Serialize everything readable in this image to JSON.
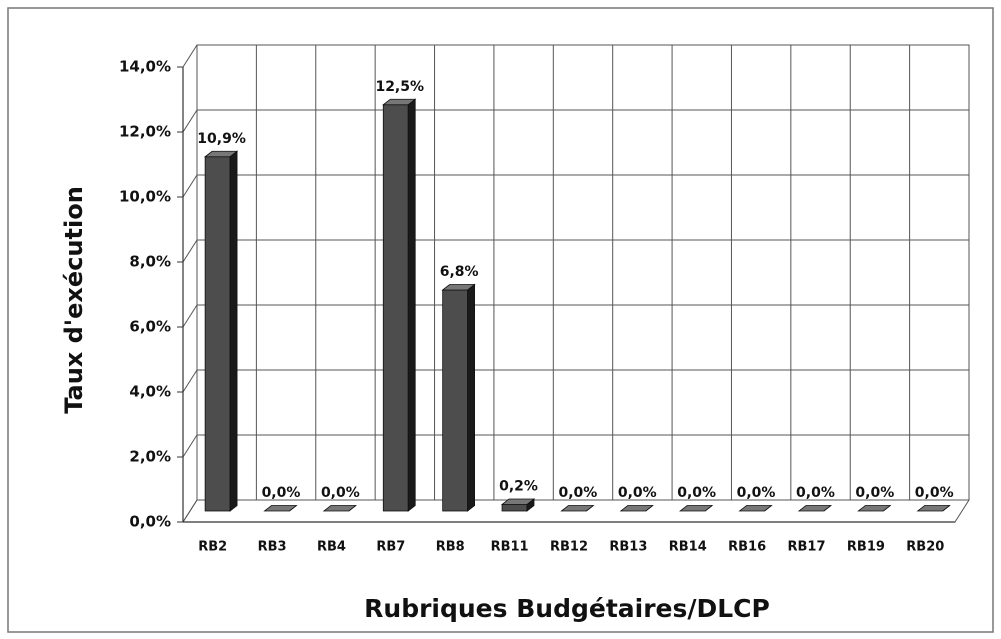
{
  "chart_data": {
    "type": "bar3d",
    "y_label": "Taux d'exécution",
    "x_label": "Rubriques Budgétaires/DLCP",
    "categories": [
      "RB2",
      "RB3",
      "RB4",
      "RB7",
      "RB8",
      "RB11",
      "RB12",
      "RB13",
      "RB14",
      "RB16",
      "RB17",
      "RB19",
      "RB20"
    ],
    "values": [
      10.9,
      0,
      0,
      12.5,
      6.8,
      0.2,
      0,
      0,
      0,
      0,
      0,
      0,
      0
    ],
    "value_labels": [
      "10,9%",
      "0,0%",
      "0,0%",
      "12,5%",
      "6,8%",
      "0,2%",
      "0,0%",
      "0,0%",
      "0,0%",
      "0,0%",
      "0,0%",
      "0,0%",
      "0,0%"
    ],
    "color": "#4d4d4d",
    "ylim": [
      0,
      14
    ],
    "yticks": [
      {
        "value": 0,
        "label": "0,0%"
      },
      {
        "value": 2,
        "label": "2,0%"
      },
      {
        "value": 4,
        "label": "4,0%"
      },
      {
        "value": 6,
        "label": "6,0%"
      },
      {
        "value": 8,
        "label": "8,0%"
      },
      {
        "value": 10,
        "label": "10,0%"
      },
      {
        "value": 12,
        "label": "12,0%"
      },
      {
        "value": 14,
        "label": "14,0%"
      }
    ],
    "grid": true
  }
}
